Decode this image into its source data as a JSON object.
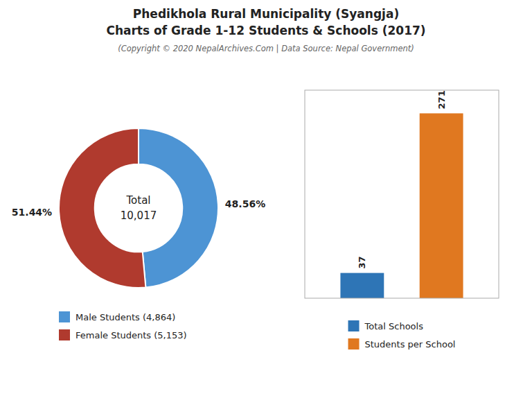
{
  "title": [
    "Phedikhola Rural Municipality (Syangja)",
    "Charts of Grade 1-12 Students & Schools (2017)"
  ],
  "subtitle": "(Copyright © 2020 NepalArchives.Com | Data Source: Nepal Government)",
  "chart_data": [
    {
      "type": "donut",
      "categories": [
        "Male Students (4,864)",
        "Female Students (5,153)"
      ],
      "values": [
        48.56,
        51.44
      ],
      "value_labels": [
        "48.56%",
        "51.44%"
      ],
      "colors": [
        "#4d94d4",
        "#b03a2e"
      ],
      "annotations": [
        "Total",
        "10,017"
      ],
      "data_labels": true,
      "legend": "lower left"
    },
    {
      "type": "bar",
      "categories": [
        "Total Schools",
        "Students per School"
      ],
      "values": [
        37,
        271
      ],
      "colors": [
        "#2e75b6",
        "#e07820"
      ],
      "ylim": [
        0,
        305
      ],
      "tick_labels": false,
      "data_labels": true,
      "legend": "lower center"
    }
  ]
}
